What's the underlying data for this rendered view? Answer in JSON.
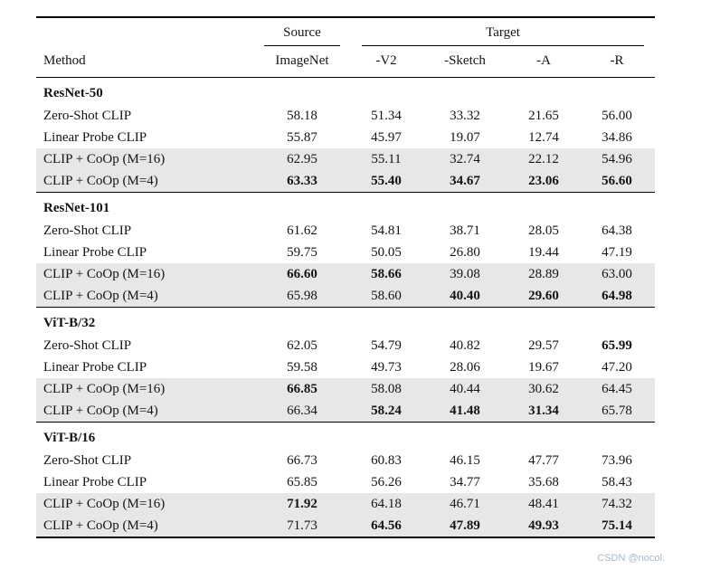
{
  "colors": {
    "row_shading": "#e7e7e7",
    "rule": "#000000",
    "watermark": "#a7b9c6"
  },
  "watermark": "CSDN @nocol.",
  "header": {
    "group_source": "Source",
    "group_target": "Target",
    "method": "Method",
    "columns": [
      "ImageNet",
      "-V2",
      "-Sketch",
      "-A",
      "-R"
    ]
  },
  "sections": [
    {
      "name": "ResNet-50",
      "rows": [
        {
          "method": "Zero-Shot CLIP",
          "shaded": false,
          "values": [
            "58.18",
            "51.34",
            "33.32",
            "21.65",
            "56.00"
          ],
          "bold": [
            false,
            false,
            false,
            false,
            false
          ]
        },
        {
          "method": "Linear Probe CLIP",
          "shaded": false,
          "values": [
            "55.87",
            "45.97",
            "19.07",
            "12.74",
            "34.86"
          ],
          "bold": [
            false,
            false,
            false,
            false,
            false
          ]
        },
        {
          "method": "CLIP + CoOp (M=16)",
          "shaded": true,
          "values": [
            "62.95",
            "55.11",
            "32.74",
            "22.12",
            "54.96"
          ],
          "bold": [
            false,
            false,
            false,
            false,
            false
          ]
        },
        {
          "method": "CLIP + CoOp (M=4)",
          "shaded": true,
          "values": [
            "63.33",
            "55.40",
            "34.67",
            "23.06",
            "56.60"
          ],
          "bold": [
            true,
            true,
            true,
            true,
            true
          ]
        }
      ]
    },
    {
      "name": "ResNet-101",
      "rows": [
        {
          "method": "Zero-Shot CLIP",
          "shaded": false,
          "values": [
            "61.62",
            "54.81",
            "38.71",
            "28.05",
            "64.38"
          ],
          "bold": [
            false,
            false,
            false,
            false,
            false
          ]
        },
        {
          "method": "Linear Probe CLIP",
          "shaded": false,
          "values": [
            "59.75",
            "50.05",
            "26.80",
            "19.44",
            "47.19"
          ],
          "bold": [
            false,
            false,
            false,
            false,
            false
          ]
        },
        {
          "method": "CLIP + CoOp (M=16)",
          "shaded": true,
          "values": [
            "66.60",
            "58.66",
            "39.08",
            "28.89",
            "63.00"
          ],
          "bold": [
            true,
            true,
            false,
            false,
            false
          ]
        },
        {
          "method": "CLIP + CoOp (M=4)",
          "shaded": true,
          "values": [
            "65.98",
            "58.60",
            "40.40",
            "29.60",
            "64.98"
          ],
          "bold": [
            false,
            false,
            true,
            true,
            true
          ]
        }
      ]
    },
    {
      "name": "ViT-B/32",
      "rows": [
        {
          "method": "Zero-Shot CLIP",
          "shaded": false,
          "values": [
            "62.05",
            "54.79",
            "40.82",
            "29.57",
            "65.99"
          ],
          "bold": [
            false,
            false,
            false,
            false,
            true
          ]
        },
        {
          "method": "Linear Probe CLIP",
          "shaded": false,
          "values": [
            "59.58",
            "49.73",
            "28.06",
            "19.67",
            "47.20"
          ],
          "bold": [
            false,
            false,
            false,
            false,
            false
          ]
        },
        {
          "method": "CLIP + CoOp (M=16)",
          "shaded": true,
          "values": [
            "66.85",
            "58.08",
            "40.44",
            "30.62",
            "64.45"
          ],
          "bold": [
            true,
            false,
            false,
            false,
            false
          ]
        },
        {
          "method": "CLIP + CoOp (M=4)",
          "shaded": true,
          "values": [
            "66.34",
            "58.24",
            "41.48",
            "31.34",
            "65.78"
          ],
          "bold": [
            false,
            true,
            true,
            true,
            false
          ]
        }
      ]
    },
    {
      "name": "ViT-B/16",
      "rows": [
        {
          "method": "Zero-Shot CLIP",
          "shaded": false,
          "values": [
            "66.73",
            "60.83",
            "46.15",
            "47.77",
            "73.96"
          ],
          "bold": [
            false,
            false,
            false,
            false,
            false
          ]
        },
        {
          "method": "Linear Probe CLIP",
          "shaded": false,
          "values": [
            "65.85",
            "56.26",
            "34.77",
            "35.68",
            "58.43"
          ],
          "bold": [
            false,
            false,
            false,
            false,
            false
          ]
        },
        {
          "method": "CLIP + CoOp (M=16)",
          "shaded": true,
          "values": [
            "71.92",
            "64.18",
            "46.71",
            "48.41",
            "74.32"
          ],
          "bold": [
            true,
            false,
            false,
            false,
            false
          ]
        },
        {
          "method": "CLIP + CoOp (M=4)",
          "shaded": true,
          "values": [
            "71.73",
            "64.56",
            "47.89",
            "49.93",
            "75.14"
          ],
          "bold": [
            false,
            true,
            true,
            true,
            true
          ]
        }
      ]
    }
  ]
}
